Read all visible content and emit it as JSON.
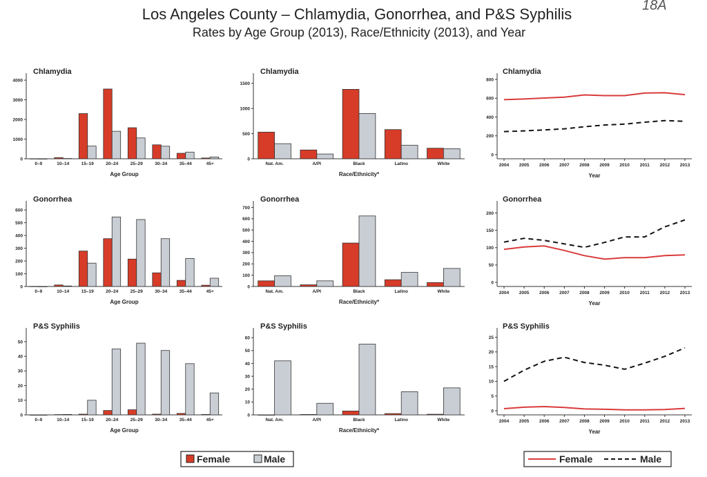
{
  "title": "Los Angeles County – Chlamydia, Gonorrhea, and P&S Syphilis",
  "subtitle": "Rates by Age Group (2013), Race/Ethnicity (2013), and Year",
  "handwritten_note": "18A",
  "colors": {
    "female": "#d63c28",
    "male": "#c9cdd4",
    "female_line": "#d93a3a",
    "male_line": "#111111"
  },
  "legend_bars": {
    "female": "Female",
    "male": "Male"
  },
  "legend_lines": {
    "female": "Female",
    "male": "Male"
  },
  "chart_data": [
    {
      "type": "bar",
      "title": "Chlamydia",
      "xlabel": "Age Group",
      "categories": [
        "0–9",
        "10–14",
        "15–19",
        "20–24",
        "25–29",
        "30–34",
        "35–44",
        "45+"
      ],
      "series": [
        {
          "name": "Female",
          "values": [
            5,
            60,
            2300,
            3550,
            1580,
            710,
            280,
            40
          ]
        },
        {
          "name": "Male",
          "values": [
            0,
            15,
            650,
            1400,
            1060,
            640,
            340,
            90
          ]
        }
      ],
      "yticks": [
        0,
        1000,
        2000,
        3000,
        4000
      ],
      "ylim": [
        0,
        4250
      ]
    },
    {
      "type": "bar",
      "title": "Chlamydia",
      "xlabel": "Race/Ethnicity*",
      "categories": [
        "Nat. Am.",
        "A/PI",
        "Black",
        "Latino",
        "White"
      ],
      "series": [
        {
          "name": "Female",
          "values": [
            530,
            175,
            1380,
            580,
            210
          ]
        },
        {
          "name": "Male",
          "values": [
            300,
            95,
            900,
            270,
            200
          ]
        }
      ],
      "yticks": [
        0,
        500,
        1000,
        1500
      ],
      "ylim": [
        0,
        1660
      ]
    },
    {
      "type": "line",
      "title": "Chlamydia",
      "xlabel": "Year",
      "x": [
        2004,
        2005,
        2006,
        2007,
        2008,
        2009,
        2010,
        2011,
        2012,
        2013
      ],
      "series": [
        {
          "name": "Female",
          "style": "solid",
          "values": [
            585,
            592,
            602,
            612,
            635,
            628,
            628,
            655,
            658,
            638
          ]
        },
        {
          "name": "Male",
          "style": "dashed",
          "values": [
            245,
            253,
            263,
            275,
            297,
            315,
            325,
            345,
            362,
            355
          ]
        }
      ],
      "yticks": [
        0,
        200,
        400,
        600,
        800
      ],
      "ylim": [
        0,
        830
      ]
    },
    {
      "type": "bar",
      "title": "Gonorrhea",
      "xlabel": "Age Group",
      "categories": [
        "0–9",
        "10–14",
        "15–19",
        "20–24",
        "25–29",
        "30–34",
        "35–44",
        "45+"
      ],
      "series": [
        {
          "name": "Female",
          "values": [
            1,
            12,
            278,
            375,
            215,
            107,
            48,
            10
          ]
        },
        {
          "name": "Male",
          "values": [
            0,
            4,
            183,
            545,
            525,
            375,
            220,
            65
          ]
        }
      ],
      "yticks": [
        0,
        100,
        200,
        300,
        400,
        500,
        600
      ],
      "ylim": [
        0,
        655
      ]
    },
    {
      "type": "bar",
      "title": "Gonorrhea",
      "xlabel": "Race/Ethnicity*",
      "categories": [
        "Nat. Am.",
        "A/PI",
        "Black",
        "Latino",
        "White"
      ],
      "series": [
        {
          "name": "Female",
          "values": [
            50,
            15,
            385,
            60,
            35
          ]
        },
        {
          "name": "Male",
          "values": [
            95,
            50,
            625,
            125,
            160
          ]
        }
      ],
      "yticks": [
        0,
        100,
        200,
        300,
        400,
        500,
        600,
        700
      ],
      "ylim": [
        0,
        740
      ]
    },
    {
      "type": "line",
      "title": "Gonorrhea",
      "xlabel": "Year",
      "x": [
        2004,
        2005,
        2006,
        2007,
        2008,
        2009,
        2010,
        2011,
        2012,
        2013
      ],
      "series": [
        {
          "name": "Female",
          "style": "solid",
          "values": [
            95,
            102,
            105,
            92,
            77,
            67,
            71,
            71,
            77,
            79
          ]
        },
        {
          "name": "Male",
          "style": "dashed",
          "values": [
            116,
            127,
            121,
            111,
            101,
            115,
            131,
            131,
            160,
            180
          ]
        }
      ],
      "yticks": [
        0,
        50,
        100,
        150,
        200
      ],
      "ylim": [
        0,
        225
      ]
    },
    {
      "type": "bar",
      "title": "P&S Syphilis",
      "xlabel": "Age Group",
      "categories": [
        "0–9",
        "10–14",
        "15–19",
        "20–24",
        "25–29",
        "30–34",
        "35–44",
        "45+"
      ],
      "series": [
        {
          "name": "Female",
          "values": [
            0,
            0.2,
            0.5,
            3,
            3.5,
            0.5,
            1,
            0.3
          ]
        },
        {
          "name": "Male",
          "values": [
            0,
            0.3,
            10,
            45,
            49,
            44,
            35,
            15
          ]
        }
      ],
      "yticks": [
        0,
        10,
        20,
        30,
        40,
        50
      ],
      "ylim": [
        0,
        58
      ]
    },
    {
      "type": "bar",
      "title": "P&S Syphilis",
      "xlabel": "Race/Ethnicity*",
      "categories": [
        "Nat. Am.",
        "A/PI",
        "Black",
        "Latino",
        "White"
      ],
      "series": [
        {
          "name": "Female",
          "values": [
            0,
            0.3,
            3,
            1,
            0.5
          ]
        },
        {
          "name": "Male",
          "values": [
            42,
            9,
            55,
            18,
            21
          ]
        }
      ],
      "yticks": [
        0,
        10,
        20,
        30,
        40,
        50,
        60
      ],
      "ylim": [
        0,
        66
      ]
    },
    {
      "type": "line",
      "title": "P&S Syphilis",
      "xlabel": "Year",
      "x": [
        2004,
        2005,
        2006,
        2007,
        2008,
        2009,
        2010,
        2011,
        2012,
        2013
      ],
      "series": [
        {
          "name": "Female",
          "style": "solid",
          "values": [
            0.7,
            1.2,
            1.4,
            1.1,
            0.6,
            0.5,
            0.3,
            0.3,
            0.4,
            0.8
          ]
        },
        {
          "name": "Male",
          "style": "dashed",
          "values": [
            10,
            13.8,
            16.8,
            18.2,
            16.4,
            15.5,
            14.1,
            16.2,
            18.5,
            21.4
          ]
        }
      ],
      "yticks": [
        0,
        5,
        10,
        15,
        20,
        25
      ],
      "ylim": [
        0,
        27
      ]
    }
  ]
}
